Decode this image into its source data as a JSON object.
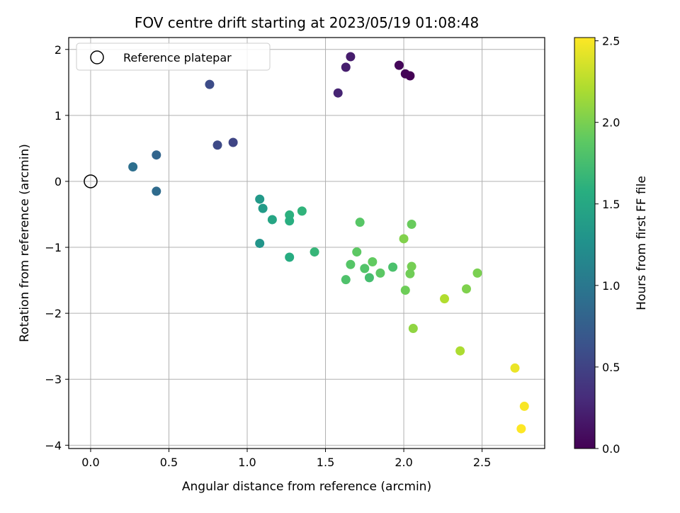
{
  "chart_data": {
    "type": "scatter",
    "title": "FOV centre drift starting at 2023/05/19 01:08:48",
    "xlabel": "Angular distance from reference (arcmin)",
    "ylabel": "Rotation from reference (arcmin)",
    "colorbar_label": "Hours from first FF file",
    "xlim": [
      -0.14,
      2.9
    ],
    "ylim": [
      -4.05,
      2.18
    ],
    "x_ticks": [
      "0.0",
      "0.5",
      "1.0",
      "1.5",
      "2.0",
      "2.5"
    ],
    "y_ticks": [
      "2",
      "1",
      "0",
      "−1",
      "−2",
      "−3",
      "−4"
    ],
    "colorbar_ticks": [
      "0.0",
      "0.5",
      "1.0",
      "1.5",
      "2.0",
      "2.5"
    ],
    "colorbar_range": [
      0,
      2.52
    ],
    "colormap": "viridis",
    "grid": true,
    "legend": {
      "placement": "top-left",
      "label": "Reference platepar"
    },
    "reference_point": {
      "x": 0.0,
      "y": 0.0
    },
    "points": [
      {
        "x": 2.04,
        "y": 1.6,
        "c": 0.0
      },
      {
        "x": 2.01,
        "y": 1.63,
        "c": 0.02
      },
      {
        "x": 1.97,
        "y": 1.76,
        "c": 0.04
      },
      {
        "x": 1.66,
        "y": 1.89,
        "c": 0.19
      },
      {
        "x": 1.63,
        "y": 1.73,
        "c": 0.21
      },
      {
        "x": 1.58,
        "y": 1.34,
        "c": 0.25
      },
      {
        "x": 0.76,
        "y": 1.47,
        "c": 0.58
      },
      {
        "x": 0.91,
        "y": 0.59,
        "c": 0.52
      },
      {
        "x": 0.81,
        "y": 0.55,
        "c": 0.56
      },
      {
        "x": 0.42,
        "y": 0.4,
        "c": 0.82
      },
      {
        "x": 0.27,
        "y": 0.22,
        "c": 0.92
      },
      {
        "x": 0.42,
        "y": -0.15,
        "c": 0.88
      },
      {
        "x": 1.08,
        "y": -0.27,
        "c": 1.35
      },
      {
        "x": 1.1,
        "y": -0.41,
        "c": 1.37
      },
      {
        "x": 1.16,
        "y": -0.58,
        "c": 1.48
      },
      {
        "x": 1.08,
        "y": -0.94,
        "c": 1.3
      },
      {
        "x": 1.27,
        "y": -0.51,
        "c": 1.6
      },
      {
        "x": 1.27,
        "y": -0.6,
        "c": 1.58
      },
      {
        "x": 1.35,
        "y": -0.45,
        "c": 1.63
      },
      {
        "x": 1.27,
        "y": -1.15,
        "c": 1.55
      },
      {
        "x": 1.43,
        "y": -1.07,
        "c": 1.66
      },
      {
        "x": 1.72,
        "y": -0.62,
        "c": 1.85
      },
      {
        "x": 1.7,
        "y": -1.07,
        "c": 1.88
      },
      {
        "x": 1.66,
        "y": -1.26,
        "c": 1.84
      },
      {
        "x": 1.75,
        "y": -1.32,
        "c": 1.82
      },
      {
        "x": 1.8,
        "y": -1.22,
        "c": 1.9
      },
      {
        "x": 1.63,
        "y": -1.49,
        "c": 1.8
      },
      {
        "x": 1.78,
        "y": -1.46,
        "c": 1.75
      },
      {
        "x": 1.85,
        "y": -1.39,
        "c": 1.87
      },
      {
        "x": 1.93,
        "y": -1.3,
        "c": 1.78
      },
      {
        "x": 2.0,
        "y": -0.87,
        "c": 2.03
      },
      {
        "x": 2.05,
        "y": -0.65,
        "c": 1.93
      },
      {
        "x": 2.05,
        "y": -1.29,
        "c": 1.98
      },
      {
        "x": 2.04,
        "y": -1.4,
        "c": 1.96
      },
      {
        "x": 2.01,
        "y": -1.65,
        "c": 1.95
      },
      {
        "x": 2.06,
        "y": -2.23,
        "c": 2.09
      },
      {
        "x": 2.4,
        "y": -1.63,
        "c": 2.02
      },
      {
        "x": 2.47,
        "y": -1.39,
        "c": 2.0
      },
      {
        "x": 2.26,
        "y": -1.78,
        "c": 2.22
      },
      {
        "x": 2.36,
        "y": -2.57,
        "c": 2.2
      },
      {
        "x": 2.71,
        "y": -2.83,
        "c": 2.45
      },
      {
        "x": 2.77,
        "y": -3.41,
        "c": 2.5
      },
      {
        "x": 2.75,
        "y": -3.75,
        "c": 2.52
      }
    ]
  }
}
